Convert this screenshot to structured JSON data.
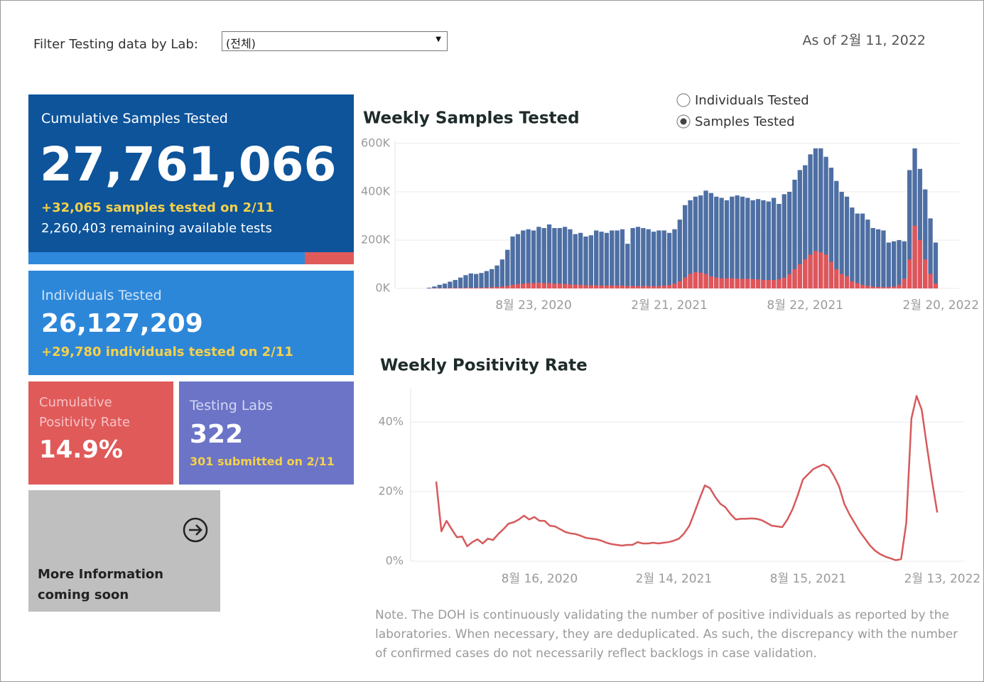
{
  "filter": {
    "label": "Filter Testing data by Lab:",
    "value": "(전체)"
  },
  "as_of": "As of 2월 11, 2022",
  "cards": {
    "cumulative": {
      "title": "Cumulative Samples Tested",
      "value": "27,761,066",
      "new": "+32,065 samples tested on 2/11",
      "remaining": "2,260,403 remaining available tests"
    },
    "individuals": {
      "title": "Individuals Tested",
      "value": "26,127,209",
      "new": "+29,780  individuals  tested on 2/11"
    },
    "positivity": {
      "title": "Cumulative Positivity Rate",
      "value": "14.9%"
    },
    "labs": {
      "title": "Testing Labs",
      "value": "322",
      "new": "301 submitted on 2/11"
    },
    "more_info": "More Information coming soon"
  },
  "radio": {
    "options": [
      "Individuals Tested",
      "Samples Tested"
    ],
    "selected": 1
  },
  "note": "Note. The DOH is continuously validating the number of positive individuals as reported by the laboratories. When necessary, they are deduplicated. As such, the discrepancy with the number of confirmed cases do not necessarily reflect backlogs in case validation.",
  "chart_data": [
    {
      "type": "bar",
      "title": "Weekly Samples Tested",
      "categories": [
        null,
        null,
        null,
        null,
        null,
        null,
        null,
        null,
        null,
        null,
        null,
        null,
        null,
        null,
        null,
        null,
        null,
        null,
        null,
        null,
        "8월 23, 2020",
        null,
        null,
        null,
        null,
        null,
        null,
        null,
        null,
        null,
        null,
        null,
        null,
        null,
        null,
        null,
        null,
        null,
        null,
        null,
        null,
        null,
        null,
        null,
        null,
        null,
        "2월 21, 2021",
        null,
        null,
        null,
        null,
        null,
        null,
        null,
        null,
        null,
        null,
        null,
        null,
        null,
        null,
        null,
        null,
        null,
        null,
        null,
        null,
        null,
        null,
        null,
        null,
        null,
        "8월 22, 2021",
        null,
        null,
        null,
        null,
        null,
        null,
        null,
        null,
        null,
        null,
        null,
        null,
        null,
        null,
        null,
        null,
        null,
        null,
        null,
        null,
        null,
        null,
        null,
        null,
        null,
        "2월 20, 2022"
      ],
      "series": [
        {
          "color": "#4e6fa3",
          "values": [
            3000,
            8000,
            15000,
            20000,
            28000,
            35000,
            45000,
            55000,
            62000,
            60000,
            64000,
            72000,
            80000,
            95000,
            120000,
            160000,
            215000,
            225000,
            240000,
            245000,
            240000,
            255000,
            250000,
            265000,
            250000,
            250000,
            255000,
            245000,
            225000,
            230000,
            215000,
            220000,
            240000,
            235000,
            230000,
            240000,
            240000,
            245000,
            185000,
            250000,
            255000,
            250000,
            245000,
            235000,
            240000,
            240000,
            230000,
            245000,
            285000,
            345000,
            365000,
            380000,
            385000,
            405000,
            395000,
            380000,
            375000,
            365000,
            380000,
            385000,
            380000,
            375000,
            365000,
            370000,
            365000,
            360000,
            375000,
            350000,
            390000,
            400000,
            450000,
            490000,
            510000,
            555000,
            580000,
            580000,
            545000,
            500000,
            445000,
            400000,
            380000,
            335000,
            310000,
            310000,
            285000,
            250000,
            245000,
            240000,
            190000,
            195000,
            200000,
            195000,
            490000,
            580000,
            495000,
            410000,
            290000,
            190000,
            null
          ]
        },
        {
          "color": "#e05559",
          "values": [
            0,
            1000,
            1000,
            1000,
            2000,
            2000,
            2000,
            3000,
            3000,
            3000,
            3000,
            4000,
            5000,
            6000,
            8000,
            10000,
            15000,
            18000,
            20000,
            22000,
            22000,
            24000,
            22000,
            22000,
            20000,
            20000,
            18000,
            17000,
            15000,
            15000,
            13000,
            13000,
            13000,
            12000,
            12000,
            12000,
            12000,
            12000,
            10000,
            10000,
            10000,
            10000,
            10000,
            9000,
            10000,
            12000,
            14000,
            20000,
            30000,
            45000,
            60000,
            68000,
            65000,
            60000,
            50000,
            45000,
            42000,
            42000,
            42000,
            40000,
            40000,
            40000,
            38000,
            38000,
            35000,
            35000,
            35000,
            38000,
            45000,
            60000,
            80000,
            100000,
            120000,
            140000,
            155000,
            150000,
            140000,
            110000,
            80000,
            60000,
            50000,
            30000,
            22000,
            15000,
            10000,
            8000,
            6000,
            6000,
            6000,
            8000,
            15000,
            40000,
            120000,
            260000,
            200000,
            120000,
            60000,
            20000,
            null
          ]
        }
      ],
      "ylim": [
        0,
        600000
      ],
      "yticks": [
        {
          "value": 0,
          "label": "0K"
        },
        {
          "value": 200000,
          "label": "200K"
        },
        {
          "value": 400000,
          "label": "400K"
        },
        {
          "value": 600000,
          "label": "600K"
        }
      ],
      "grid": true
    },
    {
      "type": "line",
      "title": "Weekly Positivity Rate",
      "categories": [
        null,
        null,
        null,
        null,
        null,
        null,
        null,
        null,
        null,
        null,
        null,
        null,
        null,
        null,
        null,
        null,
        null,
        null,
        null,
        null,
        "8월 16, 2020",
        null,
        null,
        null,
        null,
        null,
        null,
        null,
        null,
        null,
        null,
        null,
        null,
        null,
        null,
        null,
        null,
        null,
        null,
        null,
        null,
        null,
        null,
        null,
        null,
        null,
        "2월 14, 2021",
        null,
        null,
        null,
        null,
        null,
        null,
        null,
        null,
        null,
        null,
        null,
        null,
        null,
        null,
        null,
        null,
        null,
        null,
        null,
        null,
        null,
        null,
        null,
        null,
        null,
        "8월 15, 2021",
        null,
        null,
        null,
        null,
        null,
        null,
        null,
        null,
        null,
        null,
        null,
        null,
        null,
        null,
        null,
        null,
        null,
        null,
        null,
        null,
        null,
        null,
        null,
        null,
        null,
        "2월 13, 2022"
      ],
      "series": [
        {
          "color": "#d65a5c",
          "values": [
            22.9,
            8.6,
            11.6,
            9.2,
            6.9,
            7.1,
            4.3,
            5.5,
            6.3,
            5.1,
            6.5,
            6.1,
            7.8,
            9.2,
            10.8,
            11.2,
            12.0,
            13.1,
            12.0,
            12.7,
            11.6,
            11.6,
            10.2,
            10.0,
            9.2,
            8.4,
            8.0,
            7.8,
            7.3,
            6.7,
            6.5,
            6.3,
            5.9,
            5.3,
            4.9,
            4.7,
            4.5,
            4.7,
            4.7,
            5.5,
            5.1,
            5.1,
            5.3,
            5.1,
            5.3,
            5.5,
            5.9,
            6.5,
            8.0,
            10.2,
            14.0,
            18.0,
            21.8,
            21.0,
            18.5,
            16.5,
            15.5,
            13.5,
            12.0,
            12.2,
            12.2,
            12.3,
            12.2,
            11.8,
            11.0,
            10.2,
            10.0,
            9.8,
            12.0,
            15.0,
            19.0,
            23.5,
            25.0,
            26.5,
            27.2,
            27.8,
            27.0,
            24.5,
            21.5,
            16.5,
            13.5,
            11.0,
            8.5,
            6.5,
            4.5,
            3.0,
            2.0,
            1.3,
            0.8,
            0.3,
            0.6,
            11.0,
            41.0,
            47.5,
            43.5,
            33.0,
            23.0,
            14.0,
            null
          ]
        }
      ],
      "ylim": [
        0,
        49
      ],
      "yticks": [
        {
          "value": 0,
          "label": "0%"
        },
        {
          "value": 20,
          "label": "20%"
        },
        {
          "value": 40,
          "label": "40%"
        }
      ],
      "grid": true
    }
  ]
}
